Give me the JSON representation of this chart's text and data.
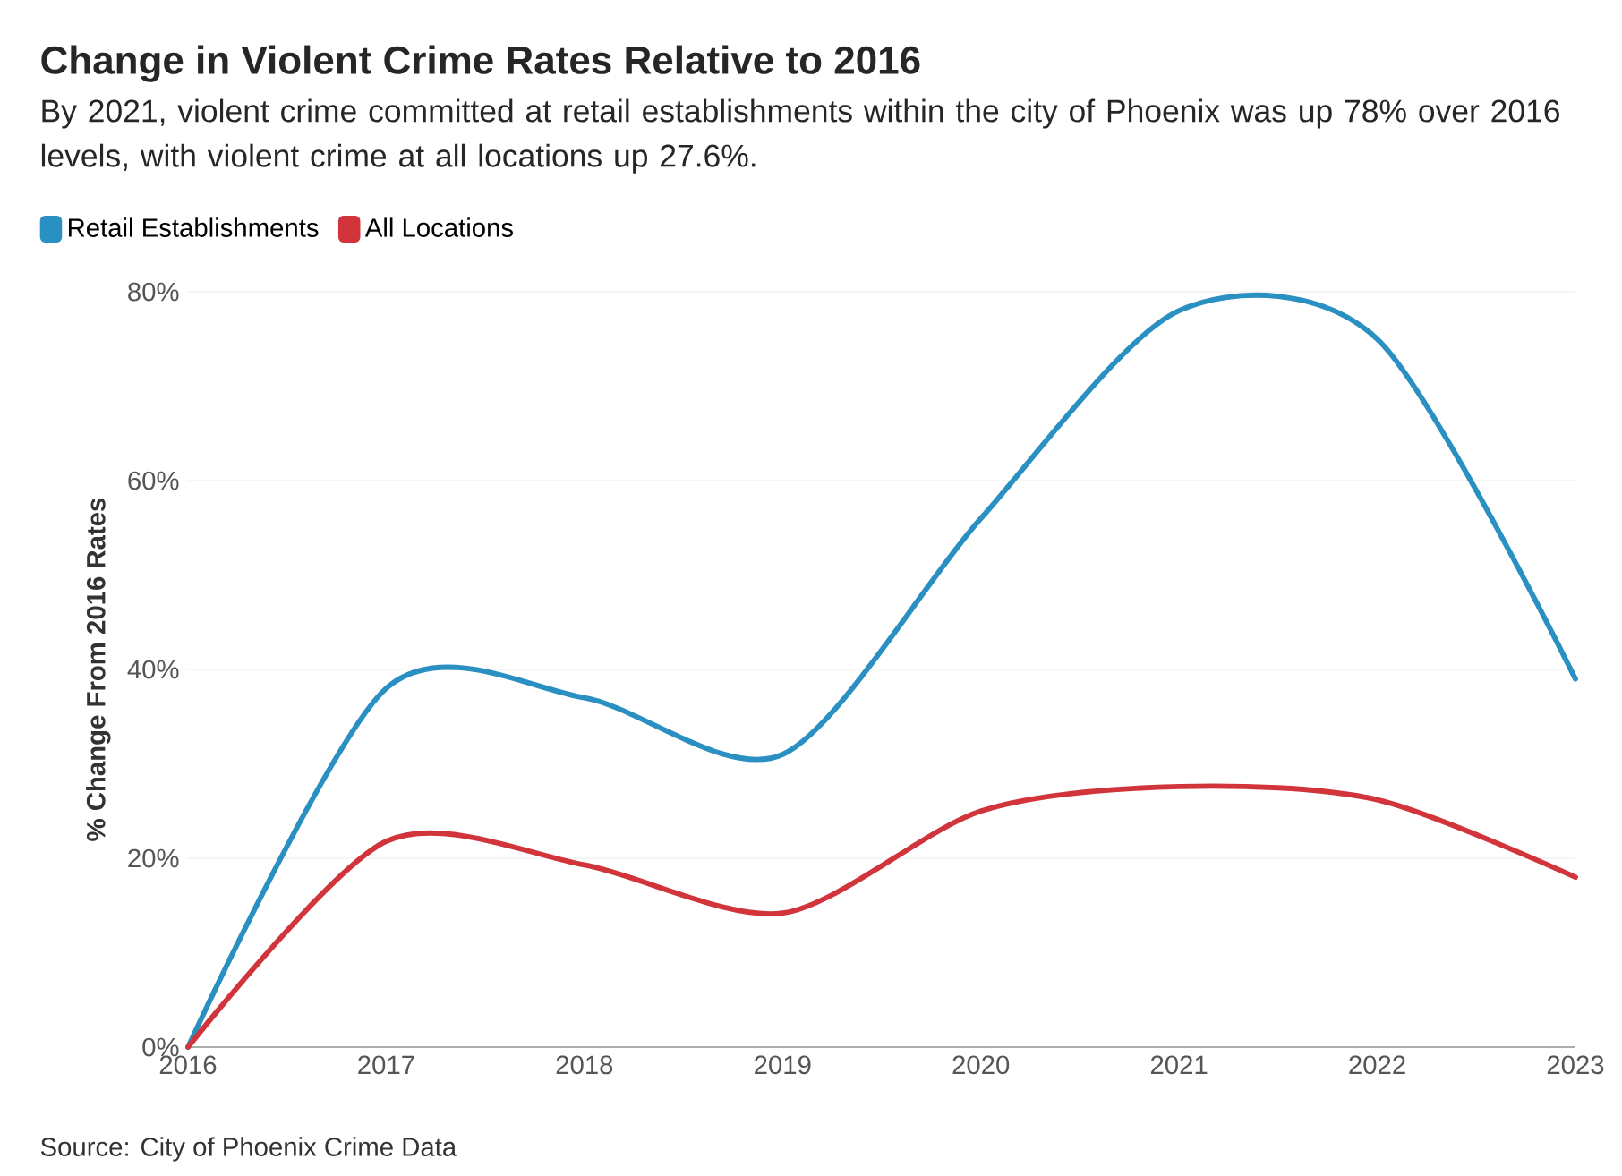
{
  "chart_data": {
    "type": "line",
    "title": "Change in Violent Crime Rates Relative to 2016",
    "subtitle": "By 2021, violent crime committed at retail establishments within the city of Phoenix was up 78% over 2016 levels, with violent crime at all locations up 27.6%.",
    "ylabel": "% Change From 2016 Rates",
    "annotations": [
      "Source: City of Phoenix Crime Data"
    ],
    "x": [
      2016,
      2017,
      2018,
      2019,
      2020,
      2021,
      2022,
      2023
    ],
    "series": [
      {
        "name": "Retail Establishments",
        "color": "#2a8fc1",
        "values": [
          0,
          38,
          37,
          31,
          56,
          78,
          75,
          39
        ]
      },
      {
        "name": "All Locations",
        "color": "#d1343a",
        "values": [
          0,
          21.8,
          19.3,
          14.2,
          25,
          27.6,
          26.2,
          18
        ]
      }
    ],
    "xlim": [
      2016,
      2023
    ],
    "xticks": [
      2016,
      2017,
      2018,
      2019,
      2020,
      2021,
      2022,
      2023
    ],
    "ylim": [
      0,
      80
    ],
    "yticks": [
      {
        "value": 0,
        "label": "0%"
      },
      {
        "value": 20,
        "label": "20%"
      },
      {
        "value": 40,
        "label": "40%"
      },
      {
        "value": 60,
        "label": "60%"
      },
      {
        "value": 80,
        "label": "80%"
      }
    ],
    "grid": "y",
    "legend": "top left",
    "marker": "none",
    "line_style": "solid"
  }
}
